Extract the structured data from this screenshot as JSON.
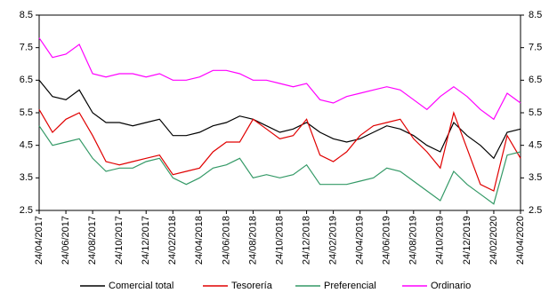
{
  "chart_data": {
    "type": "line",
    "x": [
      "24/04/2017",
      "24/05/2017",
      "24/06/2017",
      "24/07/2017",
      "24/08/2017",
      "24/09/2017",
      "24/10/2017",
      "24/11/2017",
      "24/12/2017",
      "24/01/2018",
      "24/02/2018",
      "24/03/2018",
      "24/04/2018",
      "24/05/2018",
      "24/06/2018",
      "24/07/2018",
      "24/08/2018",
      "24/09/2018",
      "24/10/2018",
      "24/11/2018",
      "24/12/2018",
      "24/01/2019",
      "24/02/2019",
      "24/03/2019",
      "24/04/2019",
      "24/05/2019",
      "24/06/2019",
      "24/07/2019",
      "24/08/2019",
      "24/09/2019",
      "24/10/2019",
      "24/11/2019",
      "24/12/2019",
      "24/01/2020",
      "24/02/2020",
      "24/03/2020",
      "24/04/2020"
    ],
    "xticks": [
      "24/04/2017",
      "24/06/2017",
      "24/08/2017",
      "24/10/2017",
      "24/12/2017",
      "24/02/2018",
      "24/04/2018",
      "24/06/2018",
      "24/08/2018",
      "24/10/2018",
      "24/12/2018",
      "24/02/2019",
      "24/04/2019",
      "24/06/2019",
      "24/08/2019",
      "24/10/2019",
      "24/12/2019",
      "24/02/2020",
      "24/04/2020"
    ],
    "series": [
      {
        "name": "Comercial total",
        "color": "#000000",
        "values": [
          6.5,
          6.0,
          5.9,
          6.2,
          5.5,
          5.2,
          5.2,
          5.1,
          5.2,
          5.3,
          4.8,
          4.8,
          4.9,
          5.1,
          5.2,
          5.4,
          5.3,
          5.1,
          4.9,
          5.0,
          5.2,
          4.9,
          4.7,
          4.6,
          4.7,
          4.9,
          5.1,
          5.0,
          4.8,
          4.5,
          4.3,
          5.2,
          4.8,
          4.5,
          4.1,
          4.9,
          5.0
        ]
      },
      {
        "name": "Tesorería",
        "color": "#e00000",
        "values": [
          5.6,
          4.9,
          5.3,
          5.5,
          4.8,
          4.0,
          3.9,
          4.0,
          4.1,
          4.2,
          3.6,
          3.7,
          3.8,
          4.3,
          4.6,
          4.6,
          5.3,
          5.0,
          4.7,
          4.8,
          5.3,
          4.2,
          4.0,
          4.3,
          4.8,
          5.1,
          5.2,
          5.3,
          4.7,
          4.3,
          3.8,
          5.5,
          4.4,
          3.3,
          3.1,
          4.8,
          4.1
        ]
      },
      {
        "name": "Preferencial",
        "color": "#339966",
        "values": [
          5.1,
          4.5,
          4.6,
          4.7,
          4.1,
          3.7,
          3.8,
          3.8,
          4.0,
          4.1,
          3.5,
          3.3,
          3.5,
          3.8,
          3.9,
          4.1,
          3.5,
          3.6,
          3.5,
          3.6,
          3.9,
          3.3,
          3.3,
          3.3,
          3.4,
          3.5,
          3.8,
          3.7,
          3.4,
          3.1,
          2.8,
          3.7,
          3.3,
          3.0,
          2.7,
          4.2,
          4.3
        ]
      },
      {
        "name": "Ordinario",
        "color": "#ff00ff",
        "values": [
          7.8,
          7.2,
          7.3,
          7.6,
          6.7,
          6.6,
          6.7,
          6.7,
          6.6,
          6.7,
          6.5,
          6.5,
          6.6,
          6.8,
          6.8,
          6.7,
          6.5,
          6.5,
          6.4,
          6.3,
          6.4,
          5.9,
          5.8,
          6.0,
          6.1,
          6.2,
          6.3,
          6.2,
          5.9,
          5.6,
          6.0,
          6.3,
          6.0,
          5.6,
          5.3,
          6.1,
          5.8
        ]
      }
    ],
    "ylim": [
      2.5,
      8.5
    ],
    "yticks": [
      2.5,
      3.5,
      4.5,
      5.5,
      6.5,
      7.5,
      8.5
    ],
    "y2lim": [
      2.5,
      8.5
    ],
    "y2ticks": [
      2.5,
      3.5,
      4.5,
      5.5,
      6.5,
      7.5,
      8.5
    ],
    "legend": "bottom"
  }
}
